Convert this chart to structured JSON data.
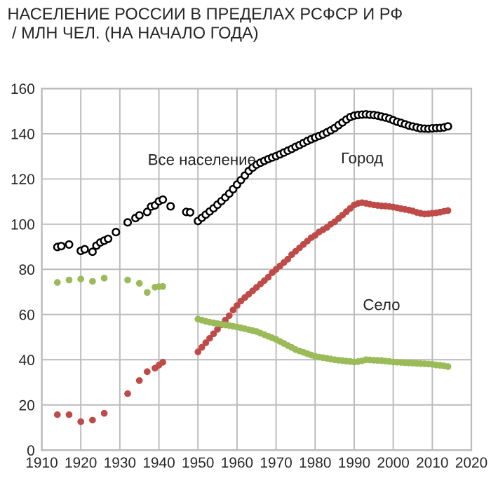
{
  "chart_data": {
    "type": "scatter",
    "title": "НАСЕЛЕНИЕ РОССИИ В ПРЕДЕЛАХ РСФСР И РФ\n / МЛН ЧЕЛ. (НА НАЧАЛО ГОДА)",
    "xlim": [
      1910,
      2020
    ],
    "xticks": [
      1910,
      1920,
      1930,
      1940,
      1950,
      1960,
      1970,
      1980,
      1990,
      2000,
      2010,
      2020
    ],
    "ylim": [
      0,
      160
    ],
    "yticks": [
      0,
      20,
      40,
      60,
      80,
      100,
      120,
      140,
      160
    ],
    "grid": true,
    "legend": false,
    "marker": "circle",
    "series": [
      {
        "name": "Все население",
        "color": "#000000",
        "x": [
          1914,
          1915,
          1917,
          1920,
          1921,
          1923,
          1924,
          1925,
          1926,
          1927,
          1929,
          1932,
          1934,
          1935,
          1937,
          1938,
          1939,
          1940,
          1941,
          1943,
          1947,
          1948,
          1950,
          1951,
          1952,
          1953,
          1954,
          1955,
          1956,
          1957,
          1958,
          1959,
          1960,
          1961,
          1962,
          1963,
          1964,
          1965,
          1966,
          1967,
          1968,
          1969,
          1970,
          1971,
          1972,
          1973,
          1974,
          1975,
          1976,
          1977,
          1978,
          1979,
          1980,
          1981,
          1982,
          1983,
          1984,
          1985,
          1986,
          1987,
          1988,
          1989,
          1990,
          1991,
          1992,
          1993,
          1994,
          1995,
          1996,
          1997,
          1998,
          1999,
          2000,
          2001,
          2002,
          2003,
          2004,
          2005,
          2006,
          2007,
          2008,
          2009,
          2010,
          2011,
          2012,
          2013,
          2014
        ],
        "values": [
          89.9,
          90.3,
          91,
          88.2,
          88.9,
          87.8,
          90.5,
          91.9,
          92.7,
          93.5,
          96.5,
          100.8,
          102.7,
          103.9,
          105.4,
          107.8,
          108.3,
          110.1,
          110.9,
          107.9,
          105.4,
          105.2,
          101.4,
          102.8,
          104.2,
          105.6,
          107,
          108.6,
          110.2,
          111.8,
          113.5,
          115.5,
          117.5,
          119.5,
          121.5,
          123.5,
          125,
          126.3,
          127.2,
          128,
          128.8,
          129.5,
          130.1,
          130.9,
          131.7,
          132.5,
          133.3,
          134.2,
          135,
          135.9,
          136.8,
          137.6,
          138.3,
          139,
          139.7,
          140.6,
          141.5,
          142.5,
          143.8,
          145,
          146.3,
          147.4,
          148,
          148.3,
          148.5,
          148.6,
          148.4,
          148.3,
          148,
          147.6,
          147.2,
          146.7,
          146,
          145.3,
          144.8,
          144.2,
          143.6,
          143.2,
          142.8,
          142.4,
          142.3,
          142.2,
          142.4,
          142.5,
          142.6,
          142.8,
          143.3
        ]
      },
      {
        "name": "Город",
        "color": "#be4b48",
        "x": [
          1914,
          1917,
          1920,
          1923,
          1926,
          1932,
          1935,
          1937,
          1939,
          1940,
          1941,
          1950,
          1951,
          1952,
          1953,
          1954,
          1955,
          1956,
          1957,
          1958,
          1959,
          1960,
          1961,
          1962,
          1963,
          1964,
          1965,
          1966,
          1967,
          1968,
          1969,
          1970,
          1971,
          1972,
          1973,
          1974,
          1975,
          1976,
          1977,
          1978,
          1979,
          1980,
          1981,
          1982,
          1983,
          1984,
          1985,
          1986,
          1987,
          1988,
          1989,
          1990,
          1991,
          1992,
          1993,
          1994,
          1995,
          1996,
          1997,
          1998,
          1999,
          2000,
          2001,
          2002,
          2003,
          2004,
          2005,
          2006,
          2007,
          2008,
          2009,
          2010,
          2011,
          2012,
          2013,
          2014
        ],
        "values": [
          15.7,
          15.7,
          12.6,
          13.3,
          16.3,
          25,
          30.8,
          34.7,
          36.3,
          37.6,
          38.9,
          43.5,
          45.5,
          47.5,
          49.5,
          51.5,
          53.5,
          55.5,
          57.5,
          59.5,
          62,
          64,
          66,
          67.5,
          69,
          70.5,
          72,
          73.5,
          75,
          76.5,
          78.5,
          80,
          81.5,
          83,
          84.5,
          86.5,
          88,
          89.5,
          91,
          92.5,
          94,
          95,
          96.5,
          97.5,
          98.5,
          100,
          101,
          102.5,
          104,
          105.5,
          107,
          108.5,
          109.2,
          109.5,
          109.2,
          108.8,
          108.5,
          108.3,
          108.1,
          108,
          107.8,
          107.5,
          107.2,
          106.8,
          106.5,
          106.2,
          105.8,
          105.2,
          104.8,
          104.5,
          104.6,
          104.8,
          105,
          105.3,
          105.7,
          106
        ]
      },
      {
        "name": "Село",
        "color": "#9bbb59",
        "x": [
          1914,
          1917,
          1920,
          1923,
          1926,
          1932,
          1935,
          1937,
          1939,
          1940,
          1941,
          1950,
          1951,
          1952,
          1953,
          1954,
          1955,
          1956,
          1957,
          1958,
          1959,
          1960,
          1961,
          1962,
          1963,
          1964,
          1965,
          1966,
          1967,
          1968,
          1969,
          1970,
          1971,
          1972,
          1973,
          1974,
          1975,
          1976,
          1977,
          1978,
          1979,
          1980,
          1981,
          1982,
          1983,
          1984,
          1985,
          1986,
          1987,
          1988,
          1989,
          1990,
          1991,
          1992,
          1993,
          1994,
          1995,
          1996,
          1997,
          1998,
          1999,
          2000,
          2001,
          2002,
          2003,
          2004,
          2005,
          2006,
          2007,
          2008,
          2009,
          2010,
          2011,
          2012,
          2013,
          2014
        ],
        "values": [
          74.2,
          75.3,
          75.7,
          74.7,
          76.1,
          75.3,
          73.8,
          69.8,
          72.1,
          72.3,
          72.4,
          58,
          57.5,
          57,
          56.6,
          56.3,
          56,
          55.7,
          55.4,
          55.1,
          54.8,
          54.5,
          54.1,
          53.7,
          53.3,
          52.9,
          52.5,
          51.8,
          51.1,
          50.4,
          49.7,
          49,
          48.1,
          47.2,
          46.3,
          45.4,
          44.5,
          43.9,
          43.3,
          42.7,
          42.1,
          41.5,
          41.2,
          40.9,
          40.6,
          40.3,
          40,
          39.8,
          39.6,
          39.4,
          39.2,
          39,
          39.2,
          39.5,
          40,
          39.9,
          39.8,
          39.7,
          39.6,
          39.4,
          39.2,
          39,
          38.9,
          38.8,
          38.7,
          38.6,
          38.5,
          38.4,
          38.3,
          38.2,
          38.1,
          38,
          37.7,
          37.5,
          37.3,
          37
        ]
      }
    ]
  }
}
